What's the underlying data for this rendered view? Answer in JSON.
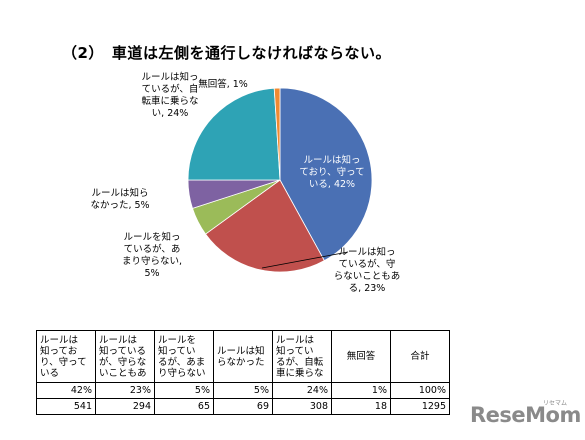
{
  "title": "（2）　車道は左側を通行しなければならない。",
  "chart_data": {
    "type": "pie",
    "slices": [
      {
        "label_lines": [
          "ルールは知っ",
          "ており、守って",
          "いる, 42%"
        ],
        "value": 42,
        "color": "#4a70b4"
      },
      {
        "label_lines": [
          "ルールは知っ",
          "ているが、守",
          "らないこともあ",
          "る, 23%"
        ],
        "value": 23,
        "color": "#c0504d"
      },
      {
        "label_lines": [
          "ルールを知っ",
          "ているが、あ",
          "まり守らない,",
          "5%"
        ],
        "value": 5,
        "color": "#9bbb59"
      },
      {
        "label_lines": [
          "ルールは知ら",
          "なかった, 5%"
        ],
        "value": 5,
        "color": "#7e62a2"
      },
      {
        "label_lines": [
          "ルールは知っ",
          "ているが、自",
          "転車に乗らな",
          "い, 24%"
        ],
        "value": 24,
        "color": "#2ea3b5"
      },
      {
        "label_lines": [
          "無回答, 1%"
        ],
        "value": 1,
        "color": "#f08a32"
      }
    ]
  },
  "table": {
    "headers": [
      "ルールは知っており、守っている",
      "ルールは知っているが、守らないこともある",
      "ルールを知っているが、あまり守らない",
      "ルールは知らなかった",
      "ルールは知っているが、自転車に乗らない",
      "無回答",
      "合計"
    ],
    "header_lines": [
      [
        "ルールは",
        "知ってお",
        "り、守って",
        "いる"
      ],
      [
        "ルールは",
        "知っている",
        "が、守らな",
        "いこともあ"
      ],
      [
        "ルールを",
        "知ってい",
        "るが、あま",
        "り守らない"
      ],
      [
        "ルールは知",
        "らなかった"
      ],
      [
        "ルールは",
        "知ってい",
        "るが、自転",
        "車に乗らな"
      ],
      [
        "無回答"
      ],
      [
        "合計"
      ]
    ],
    "percent_row": [
      "42%",
      "23%",
      "5%",
      "5%",
      "24%",
      "1%",
      "100%"
    ],
    "count_row": [
      "541",
      "294",
      "65",
      "69",
      "308",
      "18",
      "1295"
    ]
  },
  "brand": {
    "name": "ReseMom",
    "sub": "リセマム"
  }
}
